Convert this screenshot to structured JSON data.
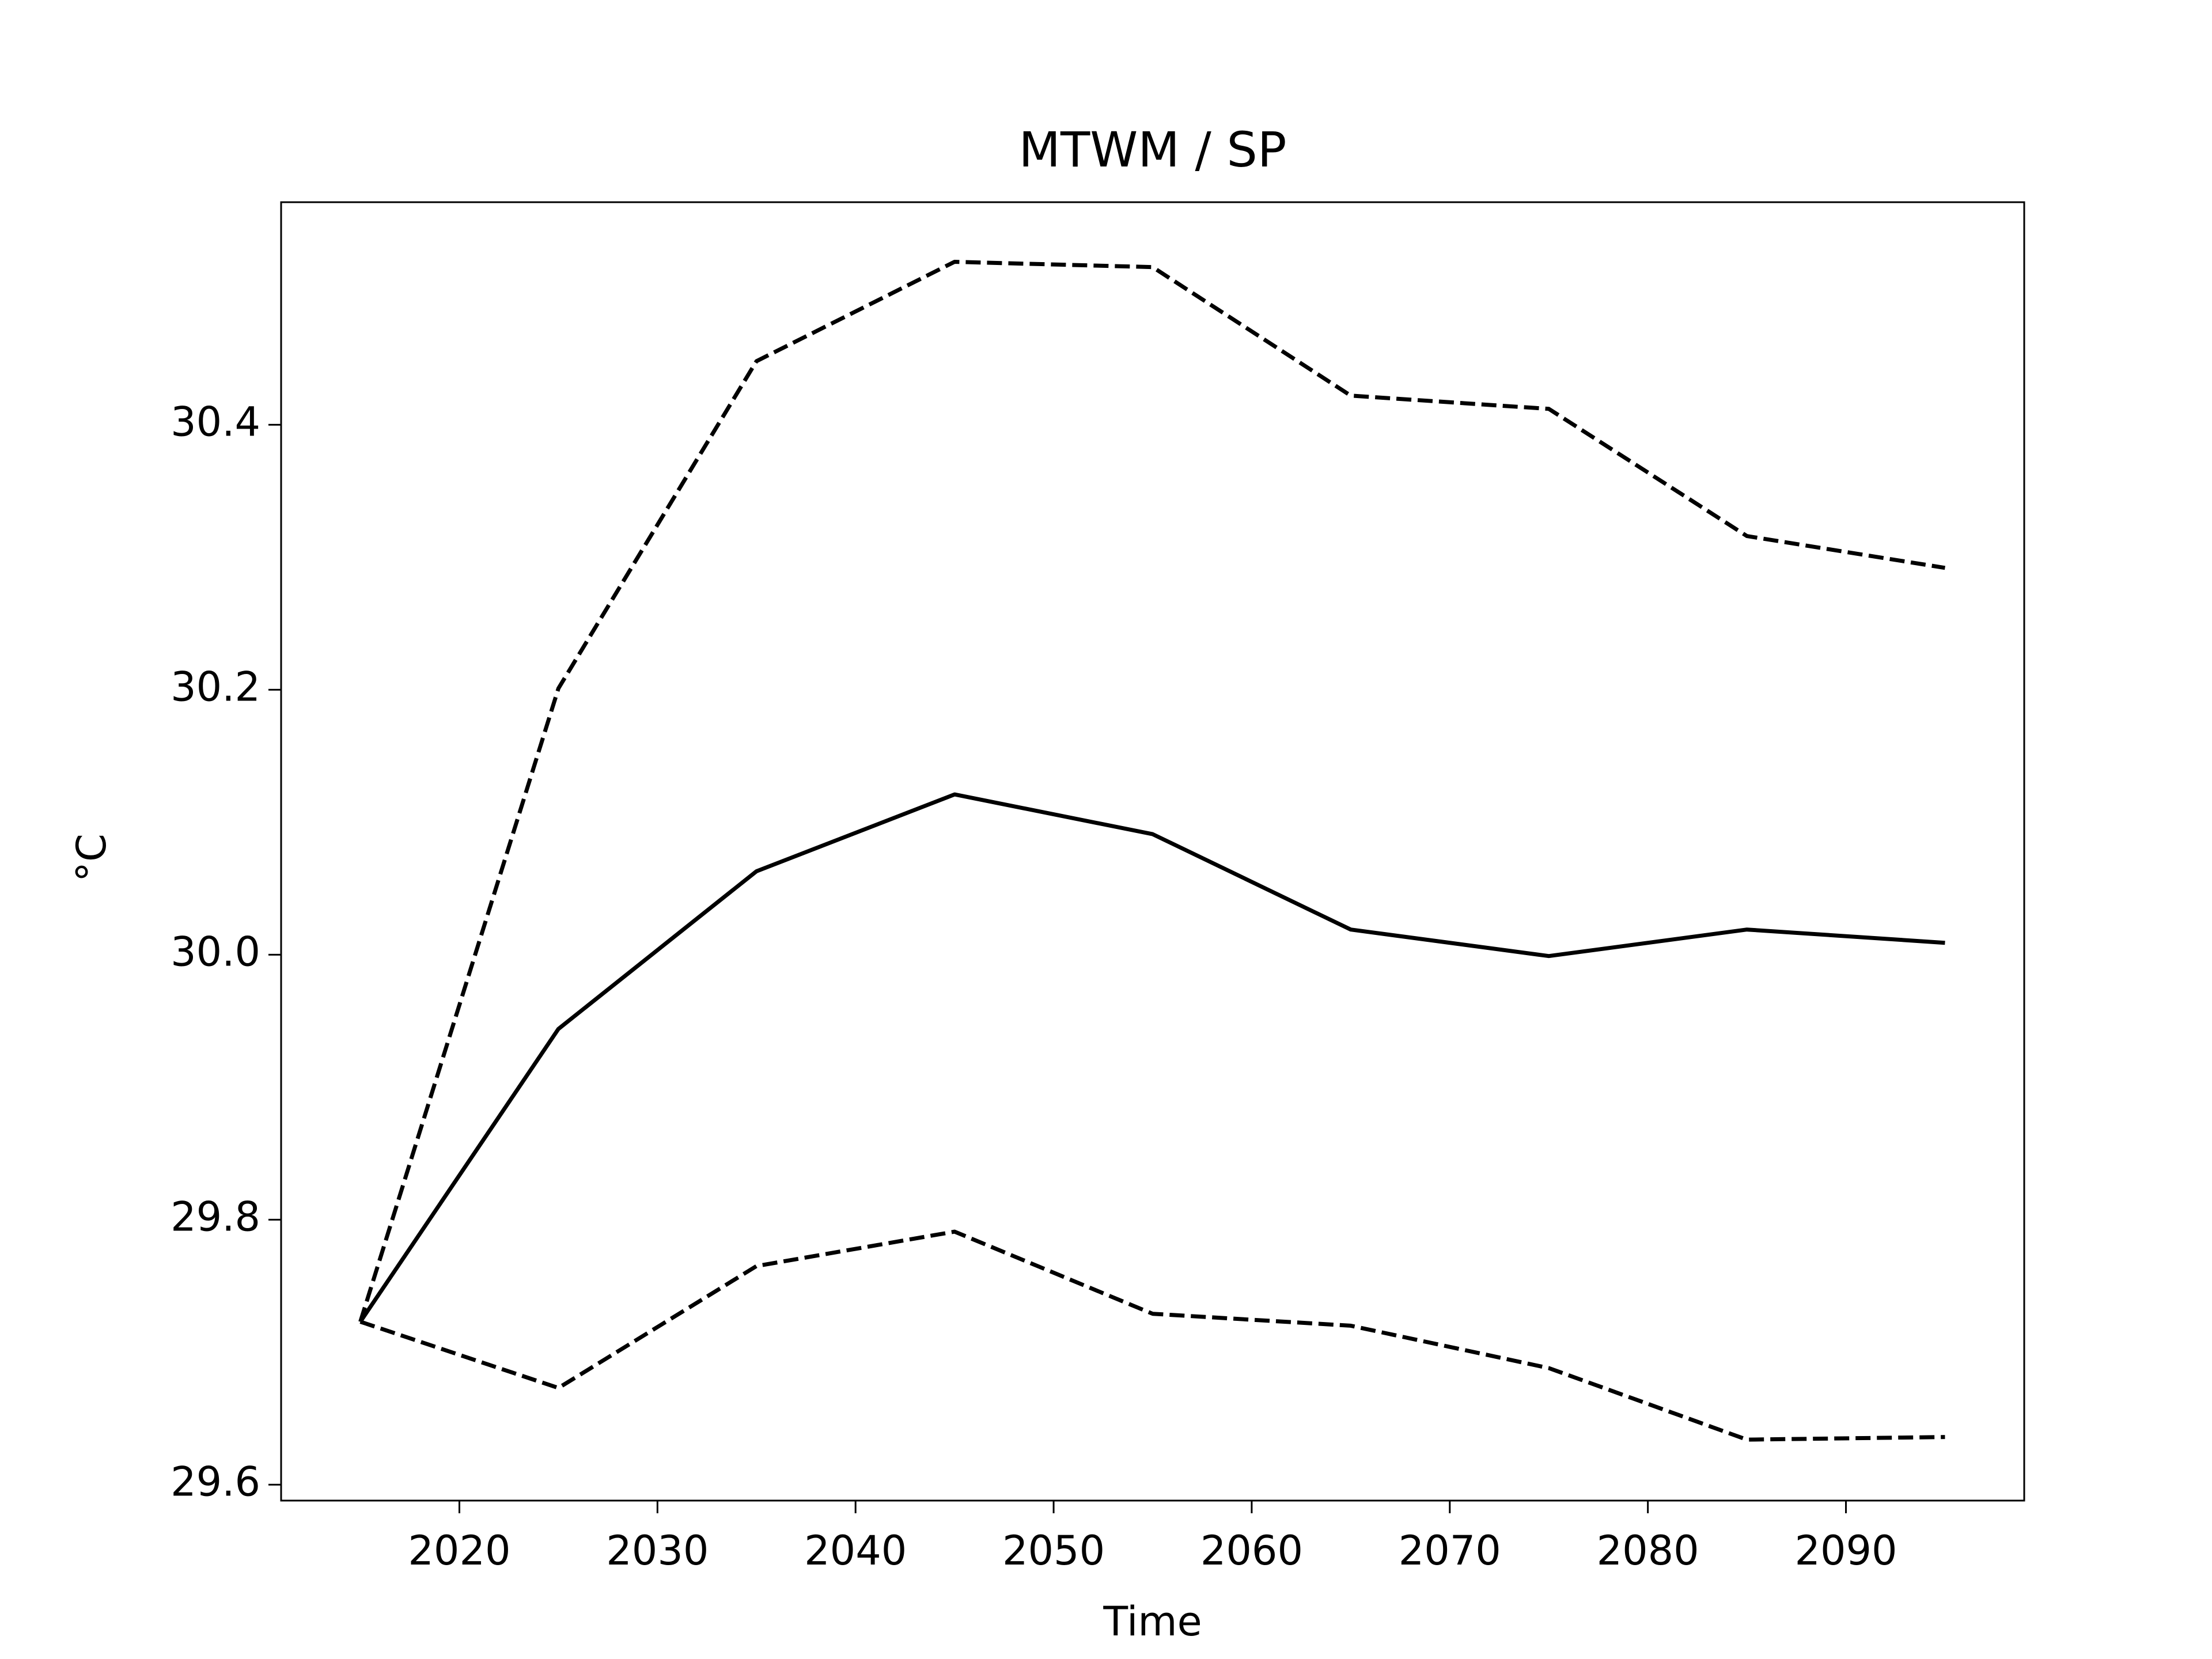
{
  "chart_data": {
    "type": "line",
    "title": "MTWM / SP",
    "xlabel": "Time",
    "ylabel": "°C",
    "x": [
      2015,
      2025,
      2035,
      2045,
      2055,
      2065,
      2075,
      2085,
      2095
    ],
    "series": [
      {
        "color": "#000000",
        "linestyle": "solid",
        "values": [
          29.723,
          29.944,
          30.063,
          30.121,
          30.091,
          30.019,
          29.999,
          30.019,
          30.009
        ]
      },
      {
        "color": "#000000",
        "linestyle": "dashed",
        "values": [
          29.723,
          30.201,
          30.448,
          30.523,
          30.519,
          30.422,
          30.412,
          30.316,
          30.292
        ]
      },
      {
        "color": "#000000",
        "linestyle": "dashed",
        "values": [
          29.723,
          29.673,
          29.765,
          29.791,
          29.729,
          29.72,
          29.688,
          29.634,
          29.636
        ]
      }
    ],
    "xlim": [
      2011,
      2099
    ],
    "xticks": [
      2020,
      2030,
      2040,
      2050,
      2060,
      2070,
      2080,
      2090
    ],
    "ylim": [
      29.588,
      30.568
    ],
    "yticks": [
      29.6,
      29.8,
      {
        "value": 30,
        "label": "30.0"
      },
      30.2,
      30.4
    ],
    "grid": false
  }
}
